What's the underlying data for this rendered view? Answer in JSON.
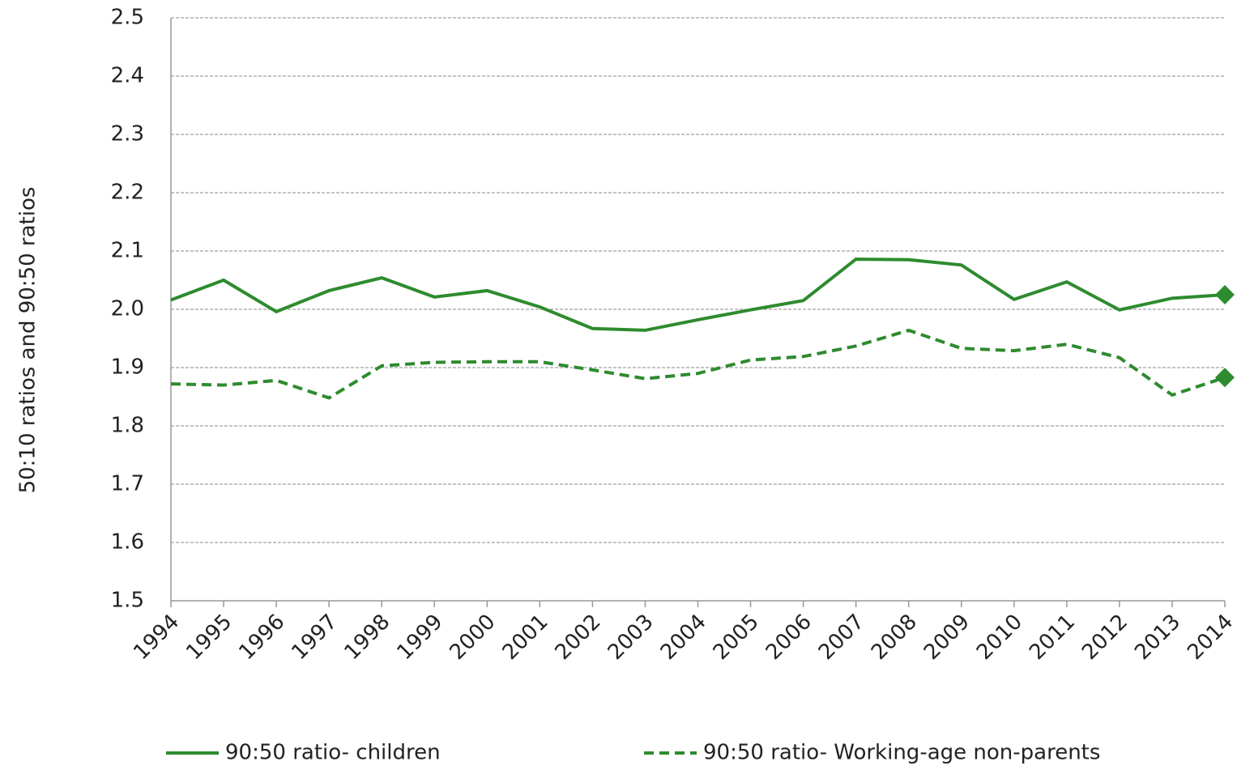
{
  "chart_data": {
    "type": "line",
    "y_label": "50:10 ratios and 90:50 ratios",
    "categories": [
      "1994",
      "1995",
      "1996",
      "1997",
      "1998",
      "1999",
      "2000",
      "2001",
      "2002",
      "2003",
      "2004",
      "2005",
      "2006",
      "2007",
      "2008",
      "2009",
      "2010",
      "2011",
      "2012",
      "2013",
      "2014"
    ],
    "series": [
      {
        "name": "90:50 ratio- children",
        "color": "#2e8b2e",
        "dash": false,
        "values": [
          2.016,
          2.05,
          1.996,
          2.032,
          2.054,
          2.021,
          2.032,
          2.004,
          1.967,
          1.964,
          1.982,
          1.999,
          2.015,
          2.086,
          2.085,
          2.076,
          2.017,
          2.047,
          1.999,
          2.019,
          2.025
        ]
      },
      {
        "name": "90:50 ratio- Working-age non-parents",
        "color": "#2e8b2e",
        "dash": true,
        "values": [
          1.872,
          1.87,
          1.878,
          1.848,
          1.903,
          1.909,
          1.91,
          1.91,
          1.896,
          1.881,
          1.89,
          1.913,
          1.919,
          1.937,
          1.964,
          1.933,
          1.929,
          1.94,
          1.917,
          1.853,
          1.883
        ]
      }
    ],
    "ylim": [
      1.5,
      2.5
    ],
    "yticks": [
      1.5,
      1.6,
      1.7,
      1.8,
      1.9,
      {
        "value": 2,
        "label": "2.0"
      },
      2.1,
      2.2,
      2.3,
      2.4,
      2.5
    ],
    "grid": true,
    "legend": "bottom"
  }
}
